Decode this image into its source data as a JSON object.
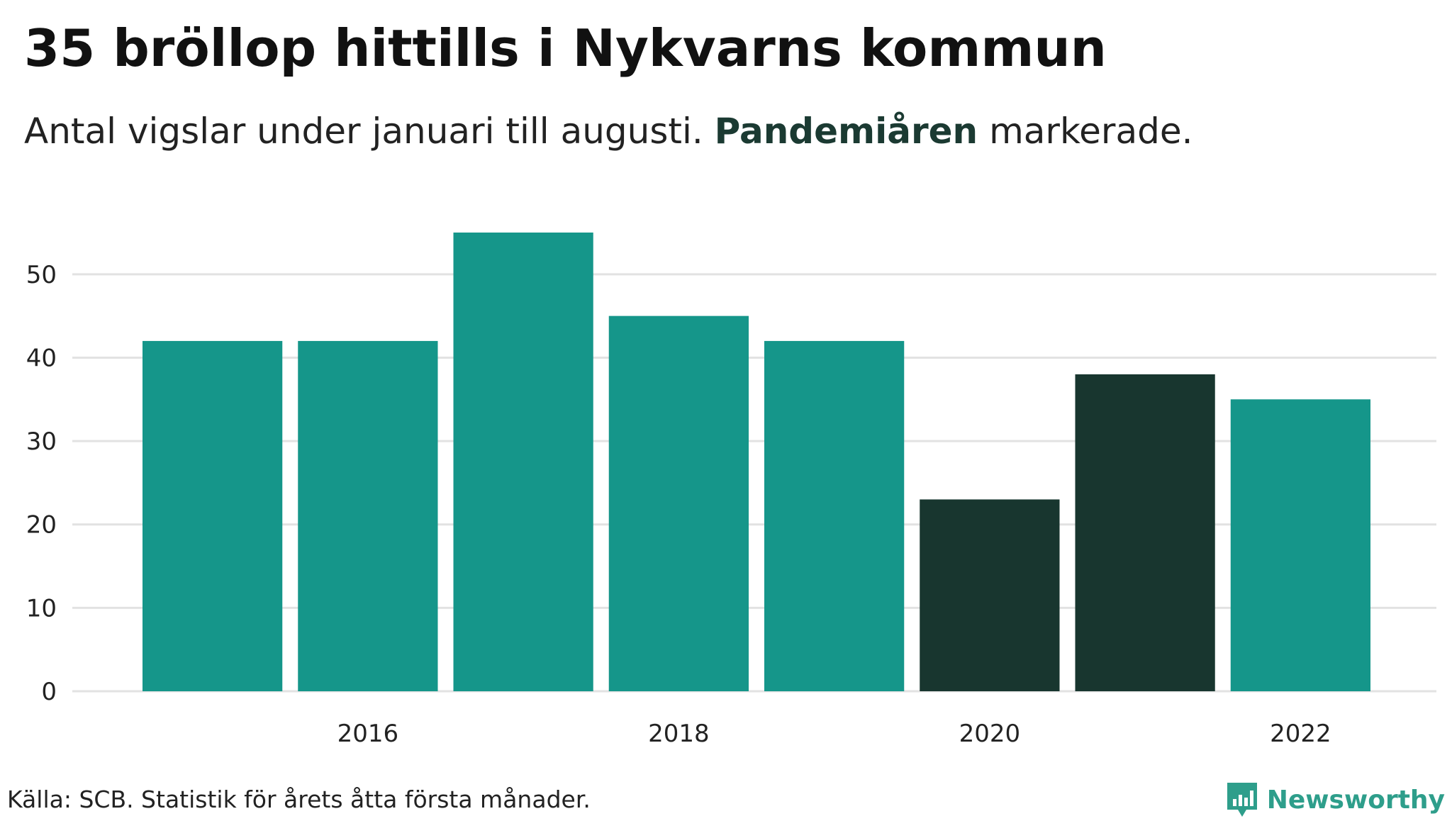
{
  "title": "35 bröllop hittills i Nykvarns kommun",
  "subtitle": {
    "before": "Antal vigslar under januari till augusti.",
    "highlight": "Pandemiåren",
    "after": "markerade."
  },
  "source": "Källa: SCB. Statistik för årets åtta första månader.",
  "brand": {
    "name": "Newsworthy",
    "icon": "bar-chart-pin-icon"
  },
  "colors": {
    "normal": "#15968a",
    "pandemic": "#18362f",
    "grid": "#e2e2e2",
    "brand": "#2e9e8b"
  },
  "chart_data": {
    "type": "bar",
    "categories": [
      "2015",
      "2016",
      "2017",
      "2018",
      "2019",
      "2020",
      "2021",
      "2022"
    ],
    "values": [
      42,
      42,
      55,
      45,
      42,
      23,
      38,
      35
    ],
    "highlighted": [
      "2020",
      "2021"
    ],
    "x_tick_labels": [
      "2016",
      "2018",
      "2020",
      "2022"
    ],
    "y_ticks": [
      0,
      10,
      20,
      30,
      40,
      50
    ],
    "ylim": [
      0,
      55
    ],
    "grid": true
  }
}
